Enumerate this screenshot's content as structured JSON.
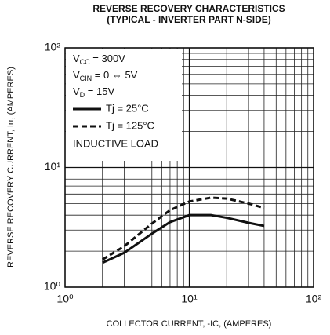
{
  "chart_data": {
    "type": "line",
    "title": "REVERSE RECOVERY CHARACTERISTICS",
    "subtitle": "(TYPICAL - INVERTER PART N-SIDE)",
    "xlabel": "COLLECTOR CURRENT, -IC, (AMPERES)",
    "ylabel": "REVERSE RECOVERY CURRENT, Irr, (AMPERES)",
    "xscale": "log",
    "yscale": "log",
    "grid": true,
    "xlim": [
      1,
      100
    ],
    "ylim": [
      1,
      100
    ],
    "xticks": [
      {
        "value": 1,
        "label": "10⁰"
      },
      {
        "value": 10,
        "label": "10¹"
      },
      {
        "value": 100,
        "label": "10²"
      }
    ],
    "yticks": [
      {
        "value": 1,
        "label": "10⁰"
      },
      {
        "value": 10,
        "label": "10¹"
      },
      {
        "value": 100,
        "label": "10²"
      }
    ],
    "annotations": [
      [
        "V",
        "CC",
        " = 300V"
      ],
      [
        "V",
        "CIN",
        " = 0 ⇔ 5V"
      ],
      [
        "V",
        "D",
        " = 15V"
      ]
    ],
    "note": "INDUCTIVE LOAD",
    "x": [
      2,
      3,
      5,
      7,
      10,
      15,
      20,
      30,
      40
    ],
    "series": [
      {
        "name": "Tj = 25°C",
        "color": "#111111",
        "dash": "solid",
        "values": [
          1.6,
          1.94,
          2.8,
          3.5,
          4.0,
          4.0,
          3.8,
          3.45,
          3.25
        ]
      },
      {
        "name": "Tj = 125°C",
        "color": "#111111",
        "dash": "dashed",
        "values": [
          1.7,
          2.2,
          3.4,
          4.4,
          5.2,
          5.6,
          5.5,
          5.0,
          4.6
        ]
      }
    ]
  }
}
